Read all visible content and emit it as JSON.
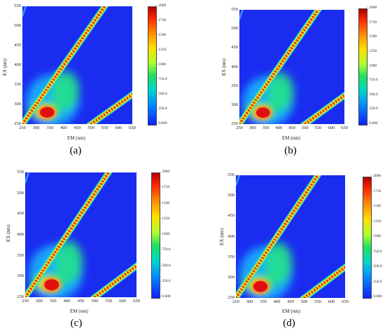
{
  "chart_data": [
    {
      "type": "heatmap",
      "panel": "(a)",
      "xlabel": "EM (nm)",
      "ylabel": "EX (nm)",
      "xlim": [
        250,
        650
      ],
      "ylim": [
        250,
        550
      ],
      "xticks": [
        "250",
        "300",
        "350",
        "400",
        "450",
        "500",
        "550",
        "600",
        "650"
      ],
      "yticks": [
        "250",
        "300",
        "350",
        "400",
        "450",
        "500",
        "550"
      ],
      "colorbar_ticks": [
        "2000",
        "1750",
        "1500",
        "1250",
        "1000",
        "750.0",
        "500.0",
        "250.0",
        "0.000"
      ],
      "peak": {
        "em": 340,
        "ex": 280,
        "intensity": 2000
      }
    },
    {
      "type": "heatmap",
      "panel": "(b)",
      "xlabel": "EM (nm)",
      "ylabel": "EX (nm)",
      "xlim": [
        250,
        650
      ],
      "ylim": [
        250,
        550
      ],
      "xticks": [
        "250",
        "300",
        "350",
        "400",
        "450",
        "500",
        "550",
        "600",
        "650"
      ],
      "yticks": [
        "250",
        "300",
        "350",
        "400",
        "450",
        "500",
        "550"
      ],
      "colorbar_ticks": [
        "2000",
        "1750",
        "1500",
        "1250",
        "1000",
        "750.0",
        "500.0",
        "250.0",
        "0.000"
      ],
      "peak": {
        "em": 340,
        "ex": 280,
        "intensity": 2000
      }
    },
    {
      "type": "heatmap",
      "panel": "(c)",
      "xlabel": "EM (nm)",
      "ylabel": "EX (nm)",
      "xlim": [
        250,
        650
      ],
      "ylim": [
        250,
        550
      ],
      "xticks": [
        "250",
        "300",
        "350",
        "400",
        "450",
        "500",
        "550",
        "600",
        "650"
      ],
      "yticks": [
        "250",
        "300",
        "350",
        "400",
        "450",
        "500",
        "550"
      ],
      "colorbar_ticks": [
        "2000",
        "1750",
        "1500",
        "1250",
        "1000",
        "750.0",
        "500.0",
        "250.0",
        "0.000"
      ],
      "peak": {
        "em": 345,
        "ex": 280,
        "intensity": 2000
      }
    },
    {
      "type": "heatmap",
      "panel": "(d)",
      "xlabel": "EM (nm)",
      "ylabel": "EX (nm)",
      "xlim": [
        250,
        650
      ],
      "ylim": [
        250,
        550
      ],
      "xticks": [
        "250",
        "300",
        "350",
        "400",
        "450",
        "500",
        "550",
        "600",
        "650"
      ],
      "yticks": [
        "250",
        "300",
        "350",
        "400",
        "450",
        "500",
        "550"
      ],
      "colorbar_ticks": [
        "2000",
        "1750",
        "1500",
        "1250",
        "1000",
        "750.0",
        "500.0",
        "250.0",
        "0.000"
      ],
      "peak": {
        "em": 340,
        "ex": 278,
        "intensity": 2000
      }
    }
  ]
}
